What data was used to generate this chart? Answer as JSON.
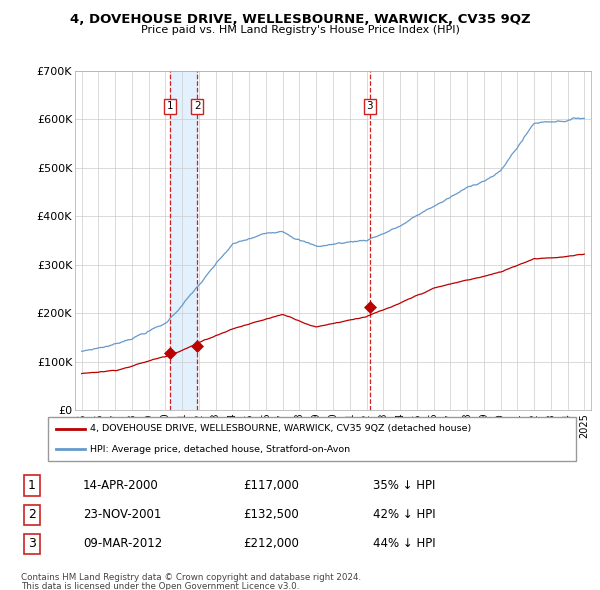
{
  "title": "4, DOVEHOUSE DRIVE, WELLESBOURNE, WARWICK, CV35 9QZ",
  "subtitle": "Price paid vs. HM Land Registry's House Price Index (HPI)",
  "ylim": [
    0,
    700000
  ],
  "yticks": [
    0,
    100000,
    200000,
    300000,
    400000,
    500000,
    600000,
    700000
  ],
  "ytick_labels": [
    "£0",
    "£100K",
    "£200K",
    "£300K",
    "£400K",
    "£500K",
    "£600K",
    "£700K"
  ],
  "xlim_start": 1994.6,
  "xlim_end": 2025.4,
  "transactions": [
    {
      "num": 1,
      "date": "14-APR-2000",
      "price": 117000,
      "year": 2000.28,
      "label": "1"
    },
    {
      "num": 2,
      "date": "23-NOV-2001",
      "price": 132500,
      "year": 2001.89,
      "label": "2"
    },
    {
      "num": 3,
      "date": "09-MAR-2012",
      "price": 212000,
      "year": 2012.19,
      "label": "3"
    }
  ],
  "red_line_color": "#bb0000",
  "blue_line_color": "#6699cc",
  "vline_color": "#cc2222",
  "shade_color": "#ddeeff",
  "legend_address": "4, DOVEHOUSE DRIVE, WELLESBOURNE, WARWICK, CV35 9QZ (detached house)",
  "legend_hpi": "HPI: Average price, detached house, Stratford-on-Avon",
  "footer1": "Contains HM Land Registry data © Crown copyright and database right 2024.",
  "footer2": "This data is licensed under the Open Government Licence v3.0.",
  "table_rows": [
    {
      "num": "1",
      "date": "14-APR-2000",
      "price": "£117,000",
      "pct": "35% ↓ HPI"
    },
    {
      "num": "2",
      "date": "23-NOV-2001",
      "price": "£132,500",
      "pct": "42% ↓ HPI"
    },
    {
      "num": "3",
      "date": "09-MAR-2012",
      "price": "£212,000",
      "pct": "44% ↓ HPI"
    }
  ]
}
